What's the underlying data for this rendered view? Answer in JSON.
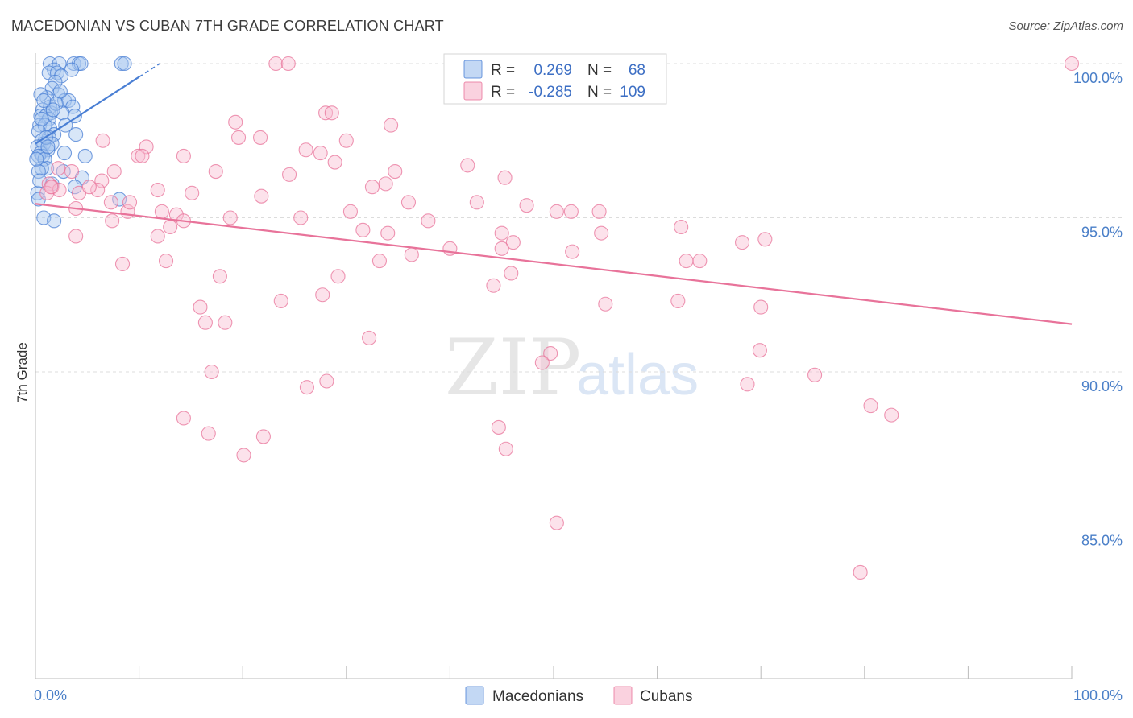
{
  "title": "MACEDONIAN VS CUBAN 7TH GRADE CORRELATION CHART",
  "source": "Source: ZipAtlas.com",
  "watermark": {
    "zip": "ZIP",
    "atlas": "atlas"
  },
  "chart_data": {
    "type": "scatter",
    "title": "MACEDONIAN VS CUBAN 7TH GRADE CORRELATION CHART",
    "xlabel": "",
    "ylabel": "7th Grade",
    "xlim": [
      0,
      100
    ],
    "ylim": [
      80.0,
      100.8
    ],
    "x_tick_labels": [
      {
        "value": 0,
        "label": "0.0%"
      },
      {
        "value": 100,
        "label": "100.0%"
      }
    ],
    "x_minor_ticks": [
      10,
      20,
      30,
      40,
      50,
      60,
      70,
      80,
      90,
      100
    ],
    "y_ticks": [
      {
        "value": 100,
        "label": "100.0%"
      },
      {
        "value": 95,
        "label": "95.0%"
      },
      {
        "value": 90,
        "label": "90.0%"
      },
      {
        "value": 85,
        "label": "85.0%"
      }
    ],
    "grid": "horizontal dashed",
    "legend_top": [
      {
        "r_label": "R =",
        "r": "0.269",
        "n_label": "N =",
        "n": "68",
        "color": "#4a7fd4"
      },
      {
        "r_label": "R =",
        "r": "-0.285",
        "n_label": "N =",
        "n": "109",
        "color": "#e8739a"
      }
    ],
    "legend_bottom": [
      "Macedonians",
      "Cubans"
    ],
    "series": [
      {
        "name": "Macedonians",
        "color": "#4a7fd4",
        "fill": "#a9c8f0",
        "trendline": {
          "x": [
            0,
            12
          ],
          "y": [
            97.4,
            100.0
          ],
          "solid_until": 10
        },
        "points": [
          [
            1.4,
            100
          ],
          [
            2.3,
            100
          ],
          [
            3.7,
            100
          ],
          [
            4.2,
            100
          ],
          [
            4.4,
            100
          ],
          [
            8.3,
            100
          ],
          [
            8.6,
            100
          ],
          [
            1.8,
            99.8
          ],
          [
            3.5,
            99.8
          ],
          [
            1.3,
            99.7
          ],
          [
            2.1,
            99.7
          ],
          [
            2.5,
            99.6
          ],
          [
            1.9,
            99.4
          ],
          [
            1.6,
            99.2
          ],
          [
            2.2,
            99.0
          ],
          [
            1.1,
            98.9
          ],
          [
            2.8,
            98.8
          ],
          [
            3.2,
            98.8
          ],
          [
            1.4,
            98.6
          ],
          [
            3.6,
            98.6
          ],
          [
            0.7,
            98.5
          ],
          [
            1.5,
            98.4
          ],
          [
            2.6,
            98.4
          ],
          [
            0.5,
            98.3
          ],
          [
            1.0,
            98.3
          ],
          [
            3.8,
            98.3
          ],
          [
            1.3,
            98.2
          ],
          [
            0.4,
            98.0
          ],
          [
            0.9,
            98.0
          ],
          [
            1.4,
            97.9
          ],
          [
            0.3,
            97.8
          ],
          [
            1.8,
            97.7
          ],
          [
            3.9,
            97.7
          ],
          [
            1.3,
            97.6
          ],
          [
            0.6,
            97.5
          ],
          [
            1.6,
            97.4
          ],
          [
            0.8,
            97.4
          ],
          [
            0.2,
            97.3
          ],
          [
            1.2,
            97.2
          ],
          [
            0.5,
            97.1
          ],
          [
            2.8,
            97.1
          ],
          [
            0.7,
            97.0
          ],
          [
            0.3,
            97.0
          ],
          [
            4.8,
            97.0
          ],
          [
            0.9,
            96.9
          ],
          [
            1.1,
            96.6
          ],
          [
            0.6,
            96.6
          ],
          [
            2.7,
            96.5
          ],
          [
            0.3,
            96.5
          ],
          [
            4.5,
            96.3
          ],
          [
            1.6,
            96.1
          ],
          [
            3.8,
            96.0
          ],
          [
            0.2,
            95.8
          ],
          [
            0.3,
            95.6
          ],
          [
            8.1,
            95.6
          ],
          [
            0.8,
            95.0
          ],
          [
            1.8,
            94.9
          ],
          [
            0.4,
            96.2
          ],
          [
            2.0,
            98.7
          ],
          [
            2.4,
            99.1
          ],
          [
            0.6,
            98.2
          ],
          [
            1.0,
            97.6
          ],
          [
            2.9,
            98.0
          ],
          [
            0.1,
            96.9
          ],
          [
            1.7,
            98.5
          ],
          [
            0.5,
            99.0
          ],
          [
            1.2,
            97.3
          ],
          [
            0.8,
            98.8
          ]
        ]
      },
      {
        "name": "Cubans",
        "color": "#e8739a",
        "fill": "#f8bfd2",
        "trendline": {
          "x": [
            0,
            100
          ],
          "y": [
            95.45,
            91.55
          ]
        },
        "points": [
          [
            23.2,
            100
          ],
          [
            24.4,
            100
          ],
          [
            100,
            100
          ],
          [
            28.0,
            98.4
          ],
          [
            28.6,
            98.4
          ],
          [
            19.3,
            98.1
          ],
          [
            34.3,
            98.0
          ],
          [
            19.6,
            97.6
          ],
          [
            21.7,
            97.6
          ],
          [
            6.5,
            97.5
          ],
          [
            10.7,
            97.3
          ],
          [
            26.1,
            97.2
          ],
          [
            27.5,
            97.1
          ],
          [
            9.9,
            97.0
          ],
          [
            10.3,
            97.0
          ],
          [
            14.3,
            97.0
          ],
          [
            28.9,
            96.8
          ],
          [
            41.7,
            96.7
          ],
          [
            7.6,
            96.5
          ],
          [
            17.4,
            96.5
          ],
          [
            24.5,
            96.4
          ],
          [
            34.7,
            96.5
          ],
          [
            45.3,
            96.3
          ],
          [
            6.4,
            96.2
          ],
          [
            1.3,
            96.1
          ],
          [
            1.6,
            96.0
          ],
          [
            2.3,
            95.9
          ],
          [
            2.2,
            96.6
          ],
          [
            32.5,
            96.0
          ],
          [
            33.8,
            96.1
          ],
          [
            11.8,
            95.9
          ],
          [
            6.0,
            95.9
          ],
          [
            4.2,
            95.8
          ],
          [
            1.1,
            95.8
          ],
          [
            15.1,
            95.8
          ],
          [
            21.8,
            95.7
          ],
          [
            7.3,
            95.5
          ],
          [
            42.6,
            95.5
          ],
          [
            47.4,
            95.4
          ],
          [
            3.9,
            95.3
          ],
          [
            8.9,
            95.2
          ],
          [
            12.2,
            95.2
          ],
          [
            13.6,
            95.1
          ],
          [
            30.4,
            95.2
          ],
          [
            50.3,
            95.2
          ],
          [
            51.7,
            95.2
          ],
          [
            54.4,
            95.2
          ],
          [
            25.6,
            95.0
          ],
          [
            18.8,
            95.0
          ],
          [
            7.4,
            94.9
          ],
          [
            37.9,
            94.9
          ],
          [
            13.0,
            94.7
          ],
          [
            14.3,
            94.9
          ],
          [
            62.3,
            94.7
          ],
          [
            54.6,
            94.5
          ],
          [
            45.0,
            94.5
          ],
          [
            31.6,
            94.6
          ],
          [
            34.0,
            94.5
          ],
          [
            3.9,
            94.4
          ],
          [
            11.8,
            94.4
          ],
          [
            46.1,
            94.2
          ],
          [
            68.2,
            94.2
          ],
          [
            70.4,
            94.3
          ],
          [
            40.0,
            94.0
          ],
          [
            36.3,
            93.8
          ],
          [
            51.8,
            93.9
          ],
          [
            33.2,
            93.6
          ],
          [
            8.4,
            93.5
          ],
          [
            12.6,
            93.6
          ],
          [
            64.1,
            93.6
          ],
          [
            62.8,
            93.6
          ],
          [
            45.9,
            93.2
          ],
          [
            17.8,
            93.1
          ],
          [
            29.2,
            93.1
          ],
          [
            44.2,
            92.8
          ],
          [
            27.7,
            92.5
          ],
          [
            23.7,
            92.3
          ],
          [
            55.0,
            92.2
          ],
          [
            62.0,
            92.3
          ],
          [
            70.0,
            92.1
          ],
          [
            15.9,
            92.1
          ],
          [
            16.4,
            91.6
          ],
          [
            18.3,
            91.6
          ],
          [
            32.2,
            91.1
          ],
          [
            69.9,
            90.7
          ],
          [
            49.7,
            90.6
          ],
          [
            48.9,
            90.3
          ],
          [
            17.0,
            90.0
          ],
          [
            28.1,
            89.7
          ],
          [
            26.2,
            89.5
          ],
          [
            75.2,
            89.9
          ],
          [
            68.7,
            89.6
          ],
          [
            80.6,
            88.9
          ],
          [
            82.6,
            88.6
          ],
          [
            14.3,
            88.5
          ],
          [
            16.7,
            88.0
          ],
          [
            44.7,
            88.2
          ],
          [
            22.0,
            87.9
          ],
          [
            45.4,
            87.5
          ],
          [
            20.1,
            87.3
          ],
          [
            50.3,
            85.1
          ],
          [
            79.6,
            83.5
          ],
          [
            1.5,
            96.0
          ],
          [
            3.5,
            96.5
          ],
          [
            5.2,
            96.0
          ],
          [
            9.1,
            95.5
          ],
          [
            30.0,
            97.5
          ],
          [
            36.0,
            95.5
          ],
          [
            45.0,
            94.0
          ]
        ]
      }
    ]
  }
}
